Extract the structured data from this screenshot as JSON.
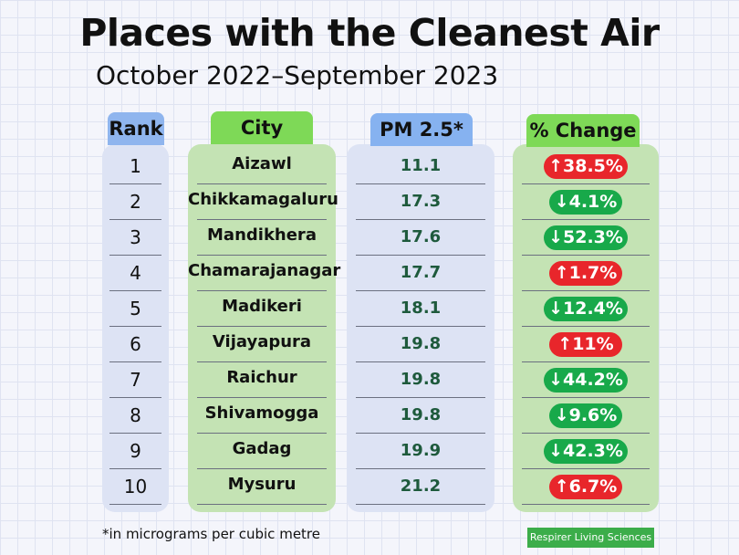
{
  "title": "Places with the Cleanest Air",
  "subtitle": "October 2022–September 2023",
  "headers": {
    "rank": "Rank",
    "city": "City",
    "pm": "PM 2.5*",
    "change": "% Change"
  },
  "colors": {
    "rank_bg": "#dde3f4",
    "rank_head": "#8fb5ee",
    "city_bg": "#c4e3b4",
    "city_head": "#7ed957",
    "pm_bg": "#dde3f4",
    "pm_head": "#86b2f0",
    "change_bg": "#c4e3b4",
    "change_head": "#7ed957",
    "increase": "#e8262b",
    "decrease": "#18a94a"
  },
  "chart_data": {
    "type": "table",
    "columns": [
      "Rank",
      "City",
      "PM 2.5*",
      "% Change"
    ],
    "rows": [
      {
        "rank": "1",
        "city": "Aizawl",
        "pm": "11.1",
        "change": "↑38.5%",
        "direction": "up"
      },
      {
        "rank": "2",
        "city": "Chikkamagaluru",
        "pm": "17.3",
        "change": "↓4.1%",
        "direction": "down"
      },
      {
        "rank": "3",
        "city": "Mandikhera",
        "pm": "17.6",
        "change": "↓52.3%",
        "direction": "down"
      },
      {
        "rank": "4",
        "city": "Chamarajanagar",
        "pm": "17.7",
        "change": "↑1.7%",
        "direction": "up"
      },
      {
        "rank": "5",
        "city": "Madikeri",
        "pm": "18.1",
        "change": "↓12.4%",
        "direction": "down"
      },
      {
        "rank": "6",
        "city": "Vijayapura",
        "pm": "19.8",
        "change": "↑11%",
        "direction": "up"
      },
      {
        "rank": "7",
        "city": "Raichur",
        "pm": "19.8",
        "change": "↓44.2%",
        "direction": "down"
      },
      {
        "rank": "8",
        "city": "Shivamogga",
        "pm": "19.8",
        "change": "↓9.6%",
        "direction": "down"
      },
      {
        "rank": "9",
        "city": "Gadag",
        "pm": "19.9",
        "change": "↓42.3%",
        "direction": "down"
      },
      {
        "rank": "10",
        "city": "Mysuru",
        "pm": "21.2",
        "change": "↑6.7%",
        "direction": "up"
      }
    ]
  },
  "footnote": "*in micrograms per cubic metre",
  "brand": "Respirer Living Sciences"
}
